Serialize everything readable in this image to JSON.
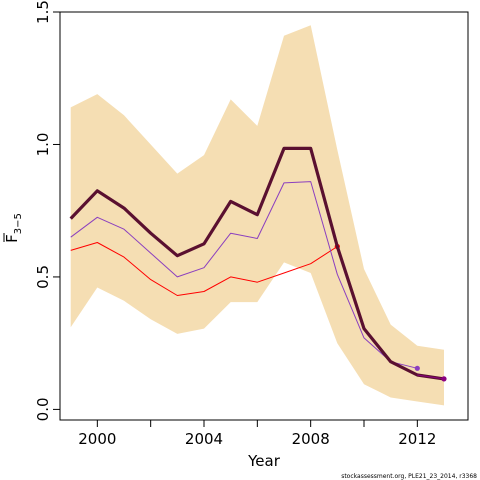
{
  "chart_data": {
    "type": "line",
    "xlabel": "Year",
    "ylabel_main": "F",
    "ylabel_sub": "3−5",
    "xlim": [
      1998.6,
      2013.9
    ],
    "ylim": [
      -0.04,
      1.5
    ],
    "xticks": [
      2000,
      2002,
      2004,
      2006,
      2008,
      2010,
      2012
    ],
    "xtick_labels": [
      "2000",
      "",
      "2004",
      "",
      "2008",
      "",
      "2012"
    ],
    "yticks": [
      0.0,
      0.5,
      1.0,
      1.5
    ],
    "ytick_labels": [
      "0.0",
      "0.5",
      "1.0",
      "1.5"
    ],
    "band": {
      "color": "#f5deb3",
      "x": [
        1999,
        2000,
        2001,
        2002,
        2003,
        2004,
        2005,
        2006,
        2007,
        2008,
        2009,
        2010,
        2011,
        2012,
        2013
      ],
      "upper": [
        1.14,
        1.19,
        1.11,
        1.0,
        0.89,
        0.96,
        1.17,
        1.07,
        1.41,
        1.45,
        0.98,
        0.53,
        0.32,
        0.24,
        0.225
      ],
      "lower": [
        0.31,
        0.46,
        0.41,
        0.34,
        0.285,
        0.305,
        0.405,
        0.405,
        0.555,
        0.515,
        0.25,
        0.095,
        0.045,
        0.03,
        0.015
      ]
    },
    "series": [
      {
        "color": "#ff0000",
        "width": 1,
        "x": [
          1999,
          2000,
          2001,
          2002,
          2003,
          2004,
          2005,
          2006,
          2007,
          2008,
          2009
        ],
        "values": [
          0.6,
          0.63,
          0.575,
          0.49,
          0.43,
          0.445,
          0.5,
          0.48,
          0.515,
          0.55,
          0.615
        ],
        "end_marker": true
      },
      {
        "color": "#8b3fbf",
        "width": 1,
        "x": [
          1999,
          2000,
          2001,
          2002,
          2003,
          2004,
          2005,
          2006,
          2007,
          2008,
          2009,
          2010,
          2011,
          2012
        ],
        "values": [
          0.65,
          0.725,
          0.68,
          0.59,
          0.5,
          0.535,
          0.665,
          0.645,
          0.855,
          0.86,
          0.51,
          0.27,
          0.18,
          0.155
        ],
        "end_marker": true
      },
      {
        "color": "#5a1030",
        "width": 3.2,
        "x": [
          1999,
          2000,
          2001,
          2002,
          2003,
          2004,
          2005,
          2006,
          2007,
          2008,
          2009,
          2010,
          2011,
          2012,
          2013
        ],
        "values": [
          0.72,
          0.825,
          0.76,
          0.665,
          0.58,
          0.625,
          0.785,
          0.735,
          0.985,
          0.985,
          0.615,
          0.305,
          0.18,
          0.13,
          0.115
        ],
        "end_marker": false
      },
      {
        "color": "#8b0080",
        "width": 1,
        "x": [
          2012,
          2013
        ],
        "values": [
          0.13,
          0.115
        ],
        "end_marker": true
      }
    ],
    "footer": "stockassessment.org, PLE21_23_2014, r3368"
  }
}
